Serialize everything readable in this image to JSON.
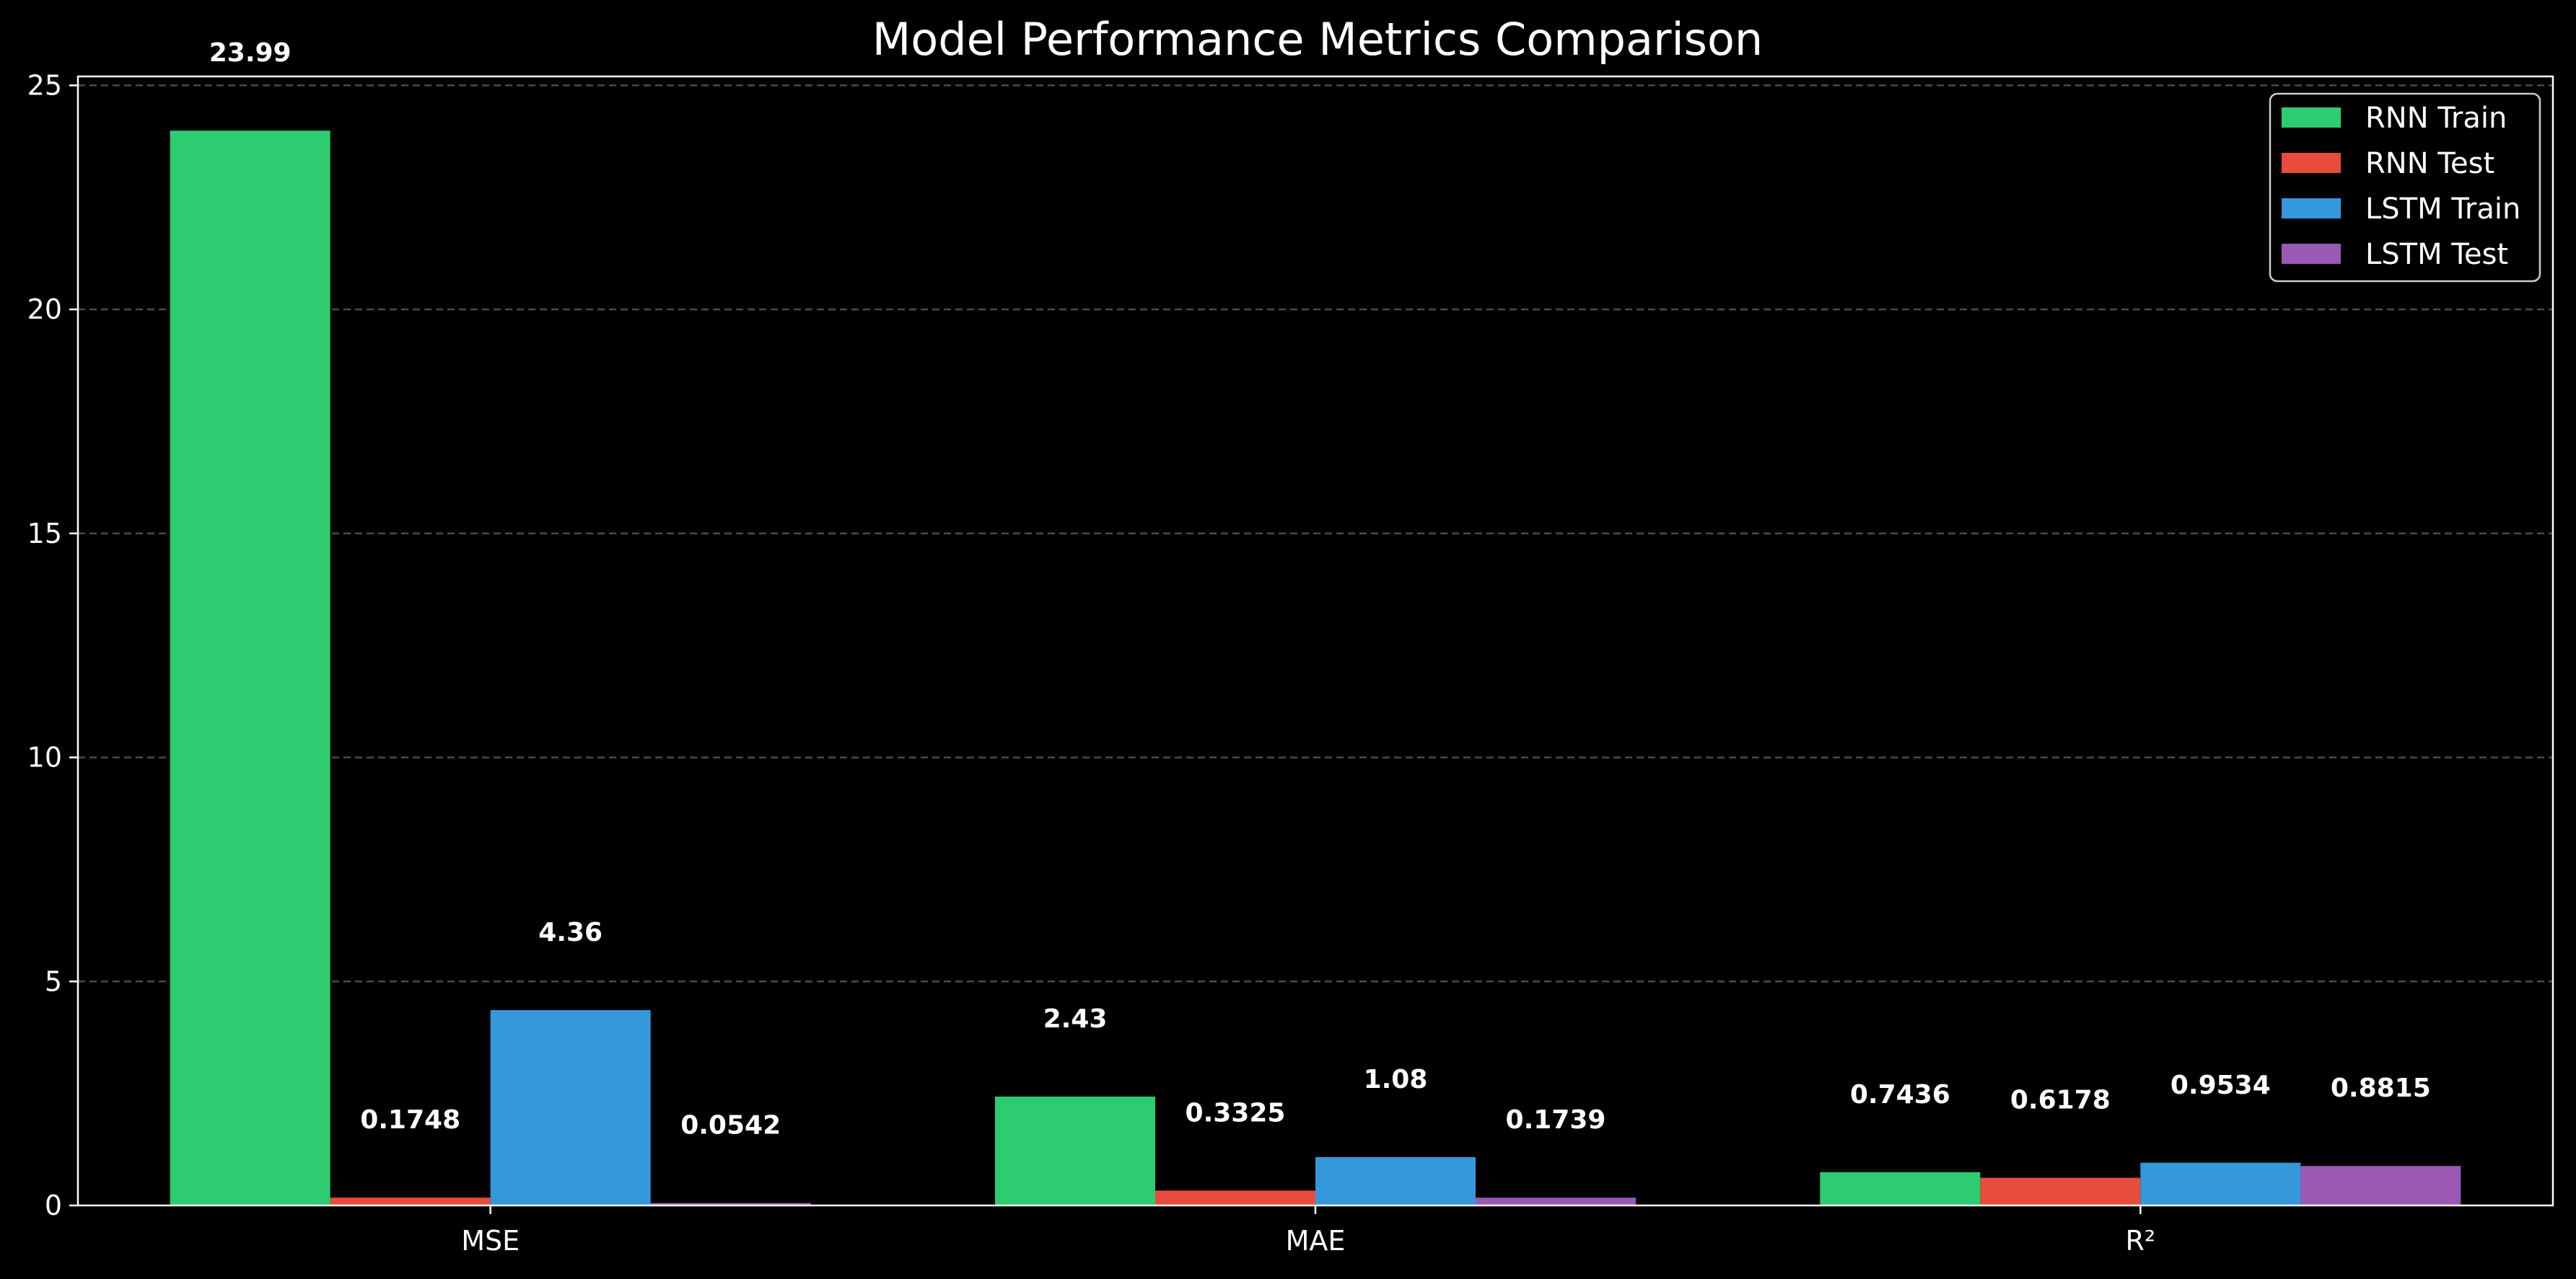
{
  "chart_data": {
    "type": "bar",
    "title": "Model Performance Metrics Comparison",
    "xlabel": "",
    "ylabel": "",
    "categories": [
      "MSE",
      "MAE",
      "R²"
    ],
    "ylim": [
      0,
      25.2
    ],
    "yticks": [
      0,
      5,
      10,
      15,
      20,
      25
    ],
    "grid": true,
    "legend_position": "top-right",
    "series": [
      {
        "name": "RNN Train",
        "color": "#2ecc71",
        "values": [
          23.99,
          2.43,
          0.7436
        ],
        "labels": [
          "23.99",
          "2.43",
          "0.7436"
        ]
      },
      {
        "name": "RNN Test",
        "color": "#e74c3c",
        "values": [
          0.1748,
          0.3325,
          0.6178
        ],
        "labels": [
          "0.1748",
          "0.3325",
          "0.6178"
        ]
      },
      {
        "name": "LSTM Train",
        "color": "#3498db",
        "values": [
          4.36,
          1.08,
          0.9534
        ],
        "labels": [
          "4.36",
          "1.08",
          "0.9534"
        ]
      },
      {
        "name": "LSTM Test",
        "color": "#9b59b6",
        "values": [
          0.0542,
          0.1739,
          0.8815
        ],
        "labels": [
          "0.0542",
          "0.1739",
          "0.8815"
        ]
      }
    ]
  }
}
